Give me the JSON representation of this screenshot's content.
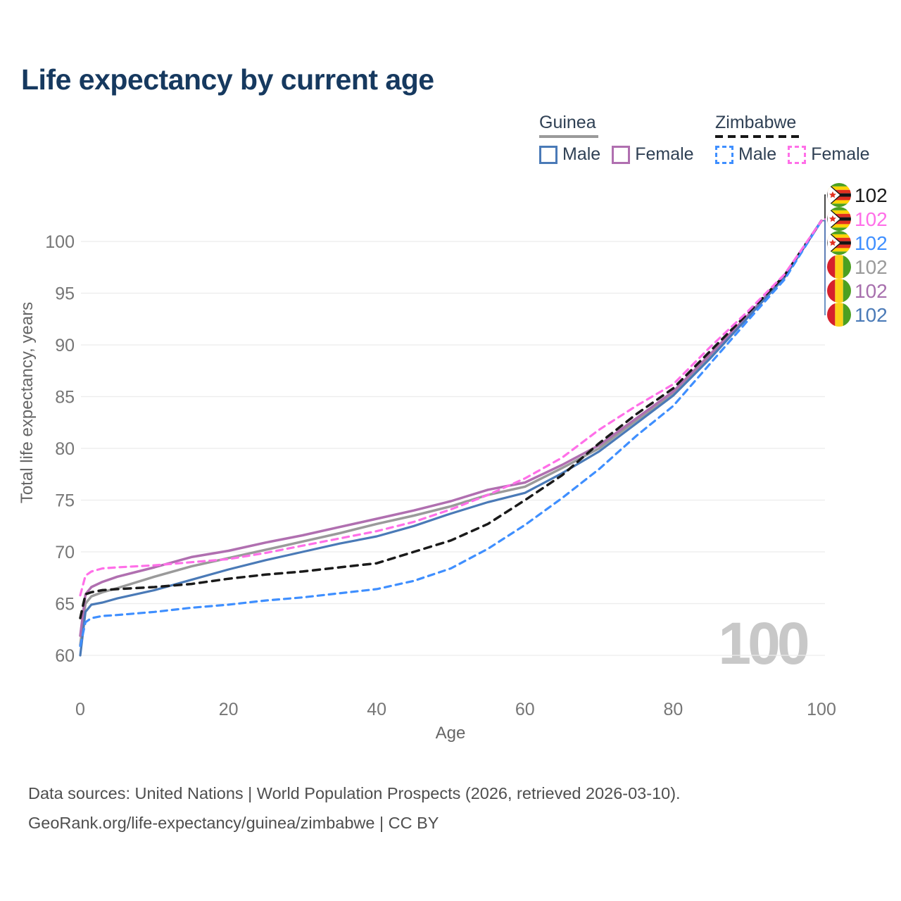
{
  "title": "Life expectancy by current age",
  "legend": {
    "groups": [
      {
        "name": "Guinea",
        "line_style": "solid",
        "underline_color": "#9a9a9a",
        "items": [
          {
            "label": "Male",
            "color": "#4a7ab7",
            "dashed": false
          },
          {
            "label": "Female",
            "color": "#b06fb0",
            "dashed": false
          }
        ]
      },
      {
        "name": "Zimbabwe",
        "line_style": "dashed",
        "underline_color": "#1a1a1a",
        "items": [
          {
            "label": "Male",
            "color": "#3f8fff",
            "dashed": true
          },
          {
            "label": "Female",
            "color": "#ff6fe8",
            "dashed": true
          }
        ]
      }
    ]
  },
  "watermark": "100",
  "footer": {
    "line1": "Data sources: United Nations | World Population Prospects (2026, retrieved 2026-03-10).",
    "line2": "GeoRank.org/life-expectancy/guinea/zimbabwe | CC BY"
  },
  "chart_data": {
    "type": "line",
    "title": "Life expectancy by current age",
    "xlabel": "Age",
    "ylabel": "Total life expectancy, years",
    "xlim": [
      0,
      100
    ],
    "ylim": [
      58,
      103
    ],
    "xticks": [
      0,
      20,
      40,
      60,
      80,
      100
    ],
    "yticks": [
      60,
      65,
      70,
      75,
      80,
      85,
      90,
      95,
      100
    ],
    "grid": "horizontal",
    "legend_position": "top-right",
    "x": [
      0,
      0.7,
      1.5,
      3,
      5,
      10,
      15,
      20,
      25,
      30,
      35,
      40,
      45,
      50,
      55,
      60,
      65,
      70,
      75,
      80,
      85,
      90,
      95,
      100
    ],
    "series": [
      {
        "id": "guinea-total",
        "name": "Guinea Total",
        "country": "Guinea",
        "sex": "Total",
        "color": "#9a9a9a",
        "dash": null,
        "width": 3.5,
        "values": [
          61.0,
          65.0,
          65.7,
          66.1,
          66.5,
          67.6,
          68.6,
          69.4,
          70.2,
          71.0,
          71.8,
          72.7,
          73.5,
          74.4,
          75.5,
          76.3,
          78.1,
          80.0,
          82.7,
          85.3,
          88.9,
          92.7,
          96.6,
          102
        ]
      },
      {
        "id": "guinea-female",
        "name": "Guinea Female",
        "country": "Guinea",
        "sex": "Female",
        "color": "#b06fb0",
        "dash": null,
        "width": 3.5,
        "values": [
          61.9,
          65.9,
          66.6,
          67.1,
          67.6,
          68.5,
          69.5,
          70.1,
          70.9,
          71.6,
          72.4,
          73.2,
          74.0,
          74.9,
          76.0,
          76.7,
          78.4,
          80.3,
          82.9,
          85.5,
          89.1,
          92.8,
          96.6,
          102
        ]
      },
      {
        "id": "guinea-male",
        "name": "Guinea Male",
        "country": "Guinea",
        "sex": "Male",
        "color": "#4a7ab7",
        "dash": null,
        "width": 3.2,
        "values": [
          60.0,
          64.2,
          64.9,
          65.1,
          65.5,
          66.3,
          67.3,
          68.3,
          69.2,
          70.0,
          70.8,
          71.5,
          72.5,
          73.7,
          74.8,
          75.7,
          77.6,
          79.7,
          82.4,
          85.1,
          88.7,
          92.6,
          96.5,
          102
        ]
      },
      {
        "id": "zimbabwe-total",
        "name": "Zimbabwe Total",
        "country": "Zimbabwe",
        "sex": "Total",
        "color": "#1a1a1a",
        "dash": "10 8",
        "width": 3.5,
        "values": [
          63.6,
          65.9,
          66.1,
          66.3,
          66.4,
          66.6,
          66.9,
          67.4,
          67.8,
          68.1,
          68.5,
          68.9,
          70.0,
          71.1,
          72.7,
          75.0,
          77.4,
          80.5,
          83.3,
          85.8,
          89.4,
          93.0,
          96.7,
          102
        ]
      },
      {
        "id": "zimbabwe-male",
        "name": "Zimbabwe Male",
        "country": "Zimbabwe",
        "sex": "Male",
        "color": "#3f8fff",
        "dash": "9 7",
        "width": 3.2,
        "values": [
          60.9,
          63.2,
          63.6,
          63.8,
          63.9,
          64.2,
          64.6,
          64.9,
          65.3,
          65.6,
          66.0,
          66.4,
          67.2,
          68.4,
          70.3,
          72.6,
          75.2,
          78.0,
          81.2,
          84.1,
          88.2,
          92.3,
          96.3,
          102
        ]
      },
      {
        "id": "zimbabwe-female",
        "name": "Zimbabwe Female",
        "country": "Zimbabwe",
        "sex": "Female",
        "color": "#ff6fe8",
        "dash": "9 7",
        "width": 3.2,
        "values": [
          65.8,
          67.7,
          68.1,
          68.4,
          68.5,
          68.7,
          69.0,
          69.3,
          69.9,
          70.6,
          71.3,
          72.0,
          72.9,
          74.1,
          75.5,
          77.1,
          79.1,
          81.8,
          84.1,
          86.2,
          89.8,
          93.2,
          96.8,
          102
        ]
      }
    ],
    "end_labels": [
      {
        "value": "102",
        "series": "Zimbabwe Total",
        "flag": "zimbabwe",
        "color": "#1a1a1a"
      },
      {
        "value": "102",
        "series": "Zimbabwe Female",
        "flag": "zimbabwe",
        "color": "#ff6fe8"
      },
      {
        "value": "102",
        "series": "Zimbabwe Male",
        "flag": "zimbabwe",
        "color": "#3f8fff"
      },
      {
        "value": "102",
        "series": "Guinea Total",
        "flag": "guinea",
        "color": "#9a9a9a"
      },
      {
        "value": "102",
        "series": "Guinea Female",
        "flag": "guinea",
        "color": "#a76fad"
      },
      {
        "value": "102",
        "series": "Guinea Male",
        "flag": "guinea",
        "color": "#4a7ab7"
      }
    ]
  }
}
